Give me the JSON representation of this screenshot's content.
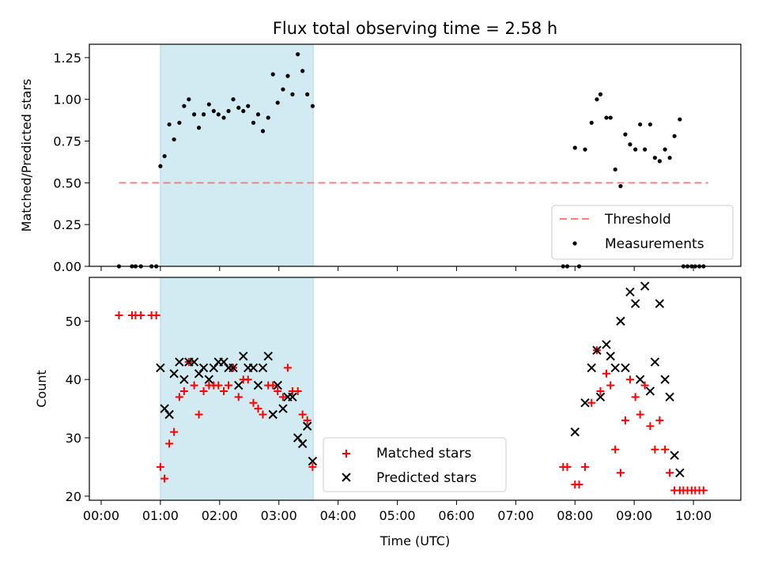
{
  "title": "Flux total observing time = 2.58 h",
  "colors": {
    "threshold": "#ff7f7f",
    "shade": "#add8e6",
    "matched": "#ff0000",
    "predicted": "#000000",
    "measurement": "#000000"
  },
  "chart_data": [
    {
      "type": "scatter",
      "ylabel": "Matched/Predicted stars",
      "ylim": [
        0,
        1.33
      ],
      "yticks": [
        0.0,
        0.25,
        0.5,
        0.75,
        1.0,
        1.25
      ],
      "ytick_labels": [
        "0.00",
        "0.25",
        "0.50",
        "0.75",
        "1.00",
        "1.25"
      ],
      "xlim": [
        -0.2,
        10.8
      ],
      "shaded_region": [
        1.0,
        3.58
      ],
      "threshold": {
        "name": "Threshold",
        "y": 0.5,
        "x": [
          0.3,
          10.25
        ]
      },
      "series": [
        {
          "name": "Measurements",
          "x": [
            0.3,
            0.52,
            0.58,
            0.67,
            0.85,
            0.93,
            1.0,
            1.07,
            1.15,
            1.23,
            1.32,
            1.4,
            1.48,
            1.57,
            1.65,
            1.73,
            1.82,
            1.9,
            1.98,
            2.07,
            2.15,
            2.23,
            2.32,
            2.4,
            2.48,
            2.57,
            2.65,
            2.73,
            2.82,
            2.9,
            2.98,
            3.07,
            3.15,
            3.23,
            3.32,
            3.4,
            3.48,
            3.57,
            7.8,
            7.87,
            8.0,
            8.07,
            8.17,
            8.28,
            8.37,
            8.43,
            8.53,
            8.6,
            8.68,
            8.77,
            8.85,
            8.93,
            9.02,
            9.1,
            9.18,
            9.27,
            9.35,
            9.43,
            9.52,
            9.6,
            9.68,
            9.77,
            9.83,
            9.9,
            9.97,
            10.03,
            10.1,
            10.17
          ],
          "y": [
            0,
            0,
            0,
            0,
            0,
            0,
            0.6,
            0.66,
            0.85,
            0.76,
            0.86,
            0.96,
            1.0,
            0.91,
            0.83,
            0.91,
            0.97,
            0.93,
            0.91,
            0.89,
            0.93,
            1.0,
            0.95,
            0.93,
            0.96,
            0.86,
            0.91,
            0.81,
            0.89,
            1.15,
            0.98,
            1.06,
            1.14,
            1.03,
            1.27,
            1.17,
            1.03,
            0.96,
            0,
            0,
            0.71,
            0,
            0.7,
            0.86,
            1.0,
            1.03,
            0.89,
            0.89,
            0.58,
            0.48,
            0.79,
            0.73,
            0.7,
            0.85,
            0.7,
            0.85,
            0.65,
            0.63,
            0.7,
            0.65,
            0.78,
            0.88,
            0,
            0,
            0,
            0,
            0,
            0
          ]
        }
      ],
      "legend": "lower right"
    },
    {
      "type": "scatter",
      "ylabel": "Count",
      "xlabel": "Time (UTC)",
      "ylim": [
        19.3,
        57.5
      ],
      "yticks": [
        20,
        30,
        40,
        50
      ],
      "ytick_labels": [
        "20",
        "30",
        "40",
        "50"
      ],
      "xlim": [
        -0.2,
        10.8
      ],
      "xticks": [
        0,
        1,
        2,
        3,
        4,
        5,
        6,
        7,
        8,
        9,
        10
      ],
      "xtick_labels": [
        "00:00",
        "01:00",
        "02:00",
        "03:00",
        "04:00",
        "05:00",
        "06:00",
        "07:00",
        "08:00",
        "09:00",
        "10:00"
      ],
      "shaded_region": [
        1.0,
        3.58
      ],
      "series": [
        {
          "name": "Matched stars",
          "marker": "+",
          "x": [
            0.3,
            0.52,
            0.58,
            0.67,
            0.85,
            0.93,
            1.0,
            1.07,
            1.15,
            1.23,
            1.32,
            1.4,
            1.48,
            1.57,
            1.65,
            1.73,
            1.82,
            1.9,
            1.98,
            2.07,
            2.15,
            2.23,
            2.32,
            2.4,
            2.48,
            2.57,
            2.65,
            2.73,
            2.82,
            2.9,
            2.98,
            3.07,
            3.15,
            3.23,
            3.32,
            3.4,
            3.48,
            3.57,
            7.8,
            7.87,
            8.0,
            8.07,
            8.17,
            8.28,
            8.37,
            8.43,
            8.53,
            8.6,
            8.68,
            8.77,
            8.85,
            8.93,
            9.02,
            9.1,
            9.18,
            9.27,
            9.35,
            9.43,
            9.52,
            9.6,
            9.68,
            9.77,
            9.83,
            9.9,
            9.97,
            10.03,
            10.1,
            10.17
          ],
          "y": [
            51,
            51,
            51,
            51,
            51,
            51,
            25,
            23,
            29,
            31,
            37,
            38,
            43,
            39,
            34,
            38,
            39,
            39,
            39,
            38,
            39,
            42,
            37,
            40,
            40,
            36,
            35,
            34,
            39,
            39,
            38,
            37,
            42,
            38,
            38,
            34,
            33,
            25,
            25,
            25,
            22,
            22,
            25,
            36,
            45,
            38,
            41,
            39,
            28,
            24,
            33,
            40,
            37,
            34,
            39,
            32,
            28,
            33,
            28,
            24,
            21,
            21,
            21,
            21,
            21,
            21,
            21,
            21
          ]
        },
        {
          "name": "Predicted stars",
          "marker": "x",
          "x": [
            1.0,
            1.07,
            1.15,
            1.23,
            1.32,
            1.4,
            1.48,
            1.57,
            1.65,
            1.73,
            1.82,
            1.9,
            1.98,
            2.07,
            2.15,
            2.23,
            2.32,
            2.4,
            2.48,
            2.57,
            2.65,
            2.73,
            2.82,
            2.9,
            2.98,
            3.07,
            3.15,
            3.23,
            3.32,
            3.4,
            3.48,
            3.57,
            8.0,
            8.17,
            8.28,
            8.37,
            8.43,
            8.53,
            8.6,
            8.68,
            8.77,
            8.85,
            8.93,
            9.02,
            9.1,
            9.18,
            9.27,
            9.35,
            9.43,
            9.52,
            9.6,
            9.68,
            9.77
          ],
          "y": [
            42,
            35,
            34,
            41,
            43,
            40,
            43,
            43,
            41,
            42,
            40,
            42,
            43,
            43,
            42,
            42,
            39,
            44,
            42,
            42,
            39,
            42,
            44,
            34,
            39,
            35,
            37,
            37,
            30,
            29,
            32,
            26,
            31,
            36,
            42,
            45,
            37,
            46,
            44,
            42,
            50,
            42,
            55,
            53,
            40,
            56,
            38,
            43,
            53,
            40,
            37,
            27,
            24
          ]
        }
      ],
      "legend": "lower center"
    }
  ]
}
